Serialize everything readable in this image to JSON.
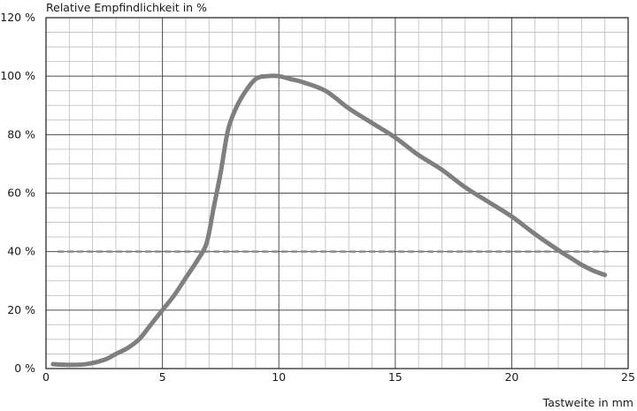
{
  "chart_data": {
    "type": "line",
    "title": "",
    "ylabel": "Relative Empfindlichkeit in %",
    "xlabel": "Tastweite in mm",
    "xlim": [
      0,
      25
    ],
    "ylim": [
      0,
      120
    ],
    "x_ticks": [
      "0",
      "5",
      "10",
      "15",
      "20",
      "25"
    ],
    "y_ticks": [
      "0 %",
      "20 %",
      "40 %",
      "60 %",
      "80 %",
      "100 %",
      "120 %"
    ],
    "grid": true,
    "colors": {
      "curve": "#7f7f7f",
      "reference": "#8c8c8c",
      "grid_major": "#4d4d4d",
      "grid_minor": "#bdbdbd"
    },
    "reference_line": {
      "y": 40,
      "x_start": 0.5,
      "x_end": 24.3,
      "style": "dashed"
    },
    "series": [
      {
        "x": [
          0.3,
          1.0,
          1.7,
          2.5,
          3.0,
          3.5,
          4.0,
          4.5,
          5.0,
          5.5,
          6.0,
          6.5,
          6.9,
          7.2,
          7.5,
          7.8,
          8.1,
          8.5,
          9.0,
          9.5,
          10.0,
          10.5,
          11.0,
          12.0,
          13.0,
          14.0,
          15.0,
          16.0,
          17.0,
          18.0,
          19.0,
          20.0,
          21.0,
          22.0,
          22.5,
          23.0,
          23.5,
          24.0
        ],
        "y": [
          1.5,
          1.3,
          1.5,
          3.0,
          5.0,
          7.0,
          10.0,
          15.0,
          20.0,
          25.0,
          31.0,
          37.0,
          43.0,
          55.0,
          67.0,
          81.0,
          88.0,
          94.0,
          99.0,
          100.0,
          100.0,
          99.0,
          98.0,
          95.0,
          89.0,
          84.0,
          79.0,
          73.0,
          68.0,
          62.0,
          57.0,
          52.0,
          46.0,
          40.5,
          38.0,
          35.5,
          33.5,
          32.0
        ]
      }
    ]
  }
}
